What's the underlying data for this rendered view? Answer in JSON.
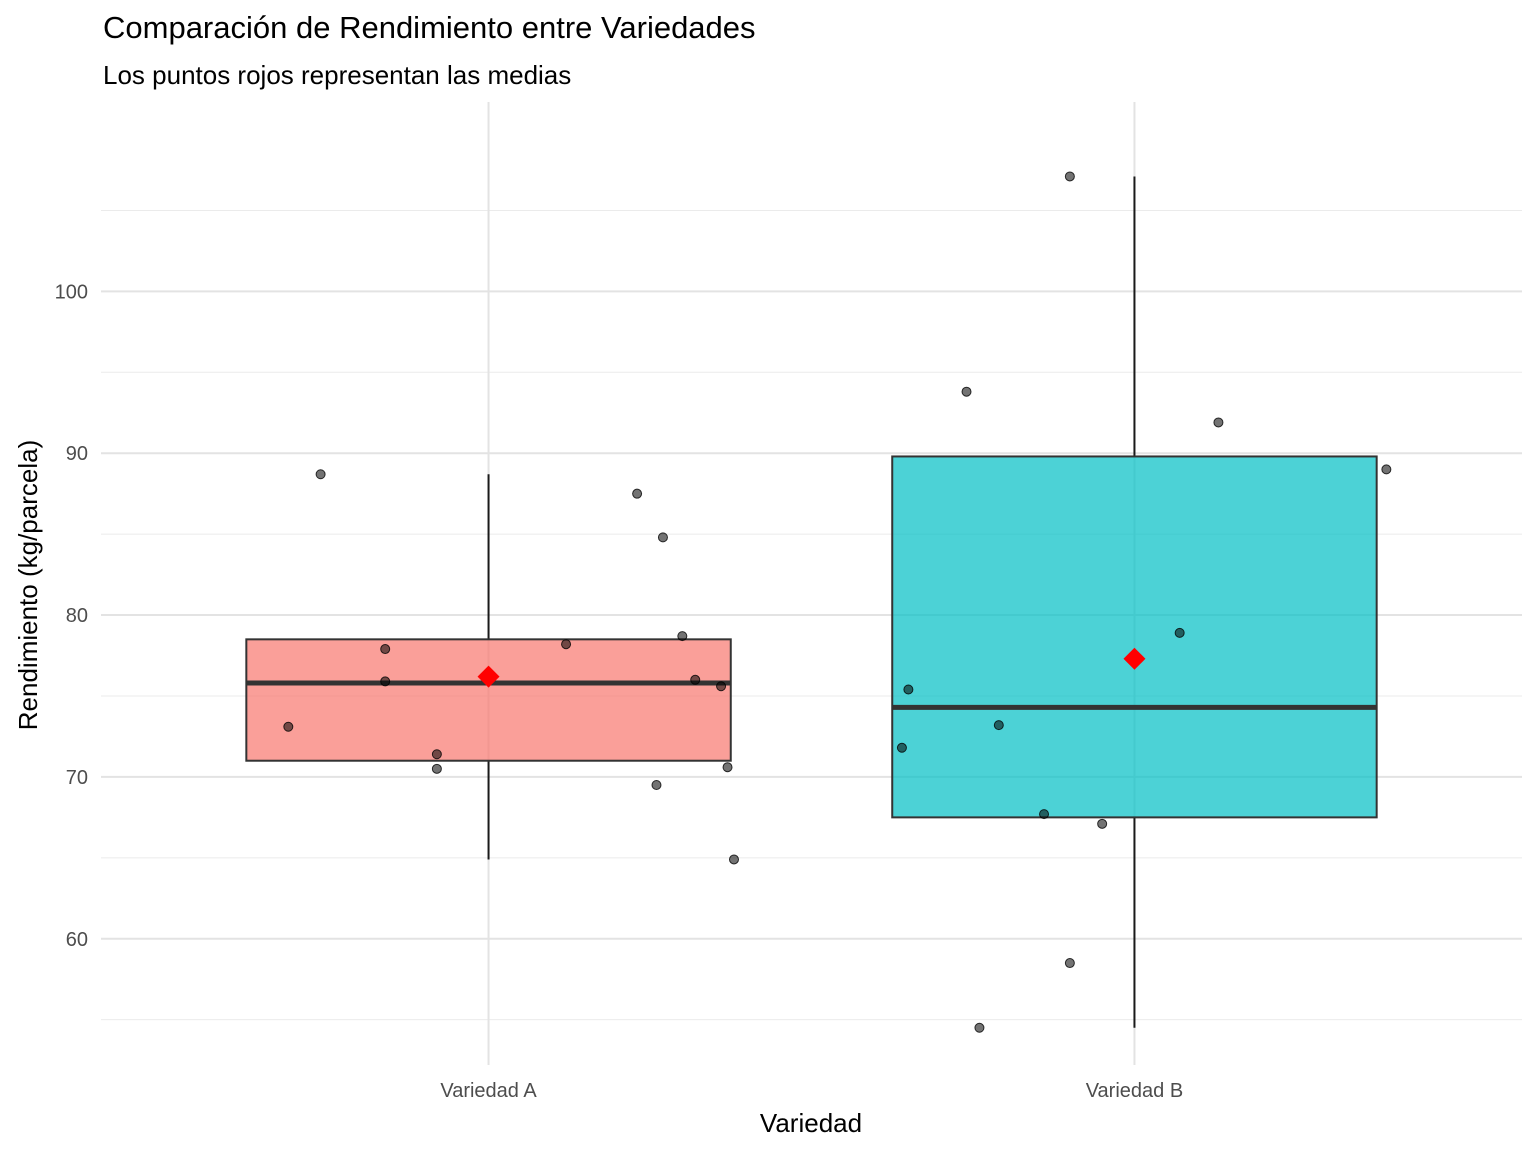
{
  "chart_data": {
    "type": "boxplot",
    "title": "Comparación de Rendimiento entre Variedades",
    "subtitle": "Los puntos rojos representan las medias",
    "xlabel": "Variedad",
    "ylabel": "Rendimiento (kg/parcela)",
    "ylim": [
      52.2,
      111.7
    ],
    "yticks": [
      60,
      70,
      80,
      90,
      100
    ],
    "grid": true,
    "categories": [
      "Variedad A",
      "Variedad B"
    ],
    "boxes": [
      {
        "category": "Variedad A",
        "color": "#F8766D",
        "whisker_low": 64.9,
        "q1": 71.0,
        "median": 75.8,
        "q3": 78.5,
        "whisker_high": 88.7,
        "mean": 76.2,
        "points": [
          {
            "offset": -0.26,
            "value": 88.7
          },
          {
            "offset": -0.31,
            "value": 73.1
          },
          {
            "offset": -0.16,
            "value": 77.9
          },
          {
            "offset": -0.16,
            "value": 75.9
          },
          {
            "offset": -0.08,
            "value": 71.4
          },
          {
            "offset": -0.08,
            "value": 70.5
          },
          {
            "offset": 0.12,
            "value": 78.2
          },
          {
            "offset": 0.23,
            "value": 87.5
          },
          {
            "offset": 0.27,
            "value": 84.8
          },
          {
            "offset": 0.3,
            "value": 78.7
          },
          {
            "offset": 0.32,
            "value": 76.0
          },
          {
            "offset": 0.36,
            "value": 75.6
          },
          {
            "offset": 0.26,
            "value": 69.5
          },
          {
            "offset": 0.37,
            "value": 70.6
          },
          {
            "offset": 0.38,
            "value": 64.9
          }
        ]
      },
      {
        "category": "Variedad B",
        "color": "#00BFC4",
        "whisker_low": 54.5,
        "q1": 67.5,
        "median": 74.3,
        "q3": 89.8,
        "whisker_high": 107.1,
        "mean": 77.3,
        "points": [
          {
            "offset": -0.1,
            "value": 107.1
          },
          {
            "offset": -0.26,
            "value": 93.8
          },
          {
            "offset": 0.13,
            "value": 91.9
          },
          {
            "offset": 0.39,
            "value": 89.0
          },
          {
            "offset": 0.07,
            "value": 78.9
          },
          {
            "offset": -0.35,
            "value": 75.4
          },
          {
            "offset": -0.21,
            "value": 73.2
          },
          {
            "offset": -0.36,
            "value": 71.8
          },
          {
            "offset": -0.14,
            "value": 67.7
          },
          {
            "offset": -0.05,
            "value": 67.1
          },
          {
            "offset": -0.1,
            "value": 58.5
          },
          {
            "offset": -0.24,
            "value": 54.5
          }
        ]
      }
    ],
    "mean_marker_color": "#FF0000"
  }
}
